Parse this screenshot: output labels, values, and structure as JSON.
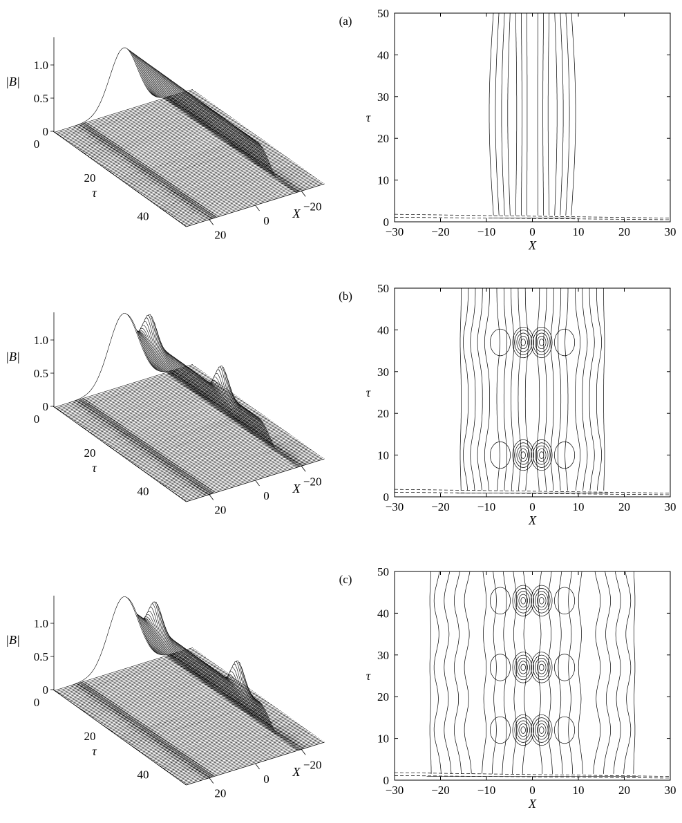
{
  "figure": {
    "panels": [
      {
        "id": "a",
        "tag": "(a)"
      },
      {
        "id": "b",
        "tag": "(b)"
      },
      {
        "id": "c",
        "tag": "(c)"
      }
    ]
  },
  "chart_data": [
    {
      "panel": "a",
      "type": "surface",
      "zlabel": "|B|",
      "ylabel": "τ",
      "xlabel": "X",
      "z_ticks": [
        "0",
        "0.5",
        "1.0"
      ],
      "tau_ticks": [
        "0",
        "20",
        "40"
      ],
      "x_ticks": [
        "−20",
        "0",
        "20"
      ],
      "tau_range": [
        0,
        50
      ],
      "x_range": [
        -30,
        30
      ],
      "z_range": [
        0,
        1.0
      ],
      "peaks": []
    },
    {
      "panel": "a",
      "type": "contour",
      "xlabel": "X",
      "ylabel": "τ",
      "xlim": [
        -30,
        30
      ],
      "ylim": [
        0,
        50
      ],
      "x_ticks": [
        "−30",
        "−20",
        "−10",
        "0",
        "10",
        "20",
        "30"
      ],
      "y_ticks": [
        "0",
        "10",
        "20",
        "30",
        "40",
        "50"
      ],
      "features": []
    },
    {
      "panel": "b",
      "type": "surface",
      "zlabel": "|B|",
      "ylabel": "τ",
      "xlabel": "X",
      "z_ticks": [
        "0",
        "0.5",
        "1.0"
      ],
      "tau_ticks": [
        "0",
        "20",
        "40"
      ],
      "x_ticks": [
        "−20",
        "0",
        "20"
      ],
      "tau_range": [
        0,
        50
      ],
      "x_range": [
        -30,
        30
      ],
      "z_range": [
        0,
        1.0
      ],
      "peaks": [
        {
          "tau": 10
        },
        {
          "tau": 37
        }
      ]
    },
    {
      "panel": "b",
      "type": "contour",
      "xlabel": "X",
      "ylabel": "τ",
      "xlim": [
        -30,
        30
      ],
      "ylim": [
        0,
        50
      ],
      "x_ticks": [
        "−30",
        "−20",
        "−10",
        "0",
        "10",
        "20",
        "30"
      ],
      "y_ticks": [
        "0",
        "10",
        "20",
        "30",
        "40",
        "50"
      ],
      "features": [
        {
          "tau": 10
        },
        {
          "tau": 37
        }
      ]
    },
    {
      "panel": "c",
      "type": "surface",
      "zlabel": "|B|",
      "ylabel": "τ",
      "xlabel": "X",
      "z_ticks": [
        "0",
        "0.5",
        "1.0"
      ],
      "tau_ticks": [
        "0",
        "20",
        "40"
      ],
      "x_ticks": [
        "−20",
        "0",
        "20"
      ],
      "tau_range": [
        0,
        50
      ],
      "x_range": [
        -30,
        30
      ],
      "z_range": [
        0,
        1.0
      ],
      "peaks": [
        {
          "tau": 12
        },
        {
          "tau": 43
        }
      ]
    },
    {
      "panel": "c",
      "type": "contour",
      "xlabel": "X",
      "ylabel": "τ",
      "xlim": [
        -30,
        30
      ],
      "ylim": [
        0,
        50
      ],
      "x_ticks": [
        "−30",
        "−20",
        "−10",
        "0",
        "10",
        "20",
        "30"
      ],
      "y_ticks": [
        "0",
        "10",
        "20",
        "30",
        "40",
        "50"
      ],
      "features": [
        {
          "tau": 12
        },
        {
          "tau": 27
        },
        {
          "tau": 43
        }
      ]
    }
  ]
}
